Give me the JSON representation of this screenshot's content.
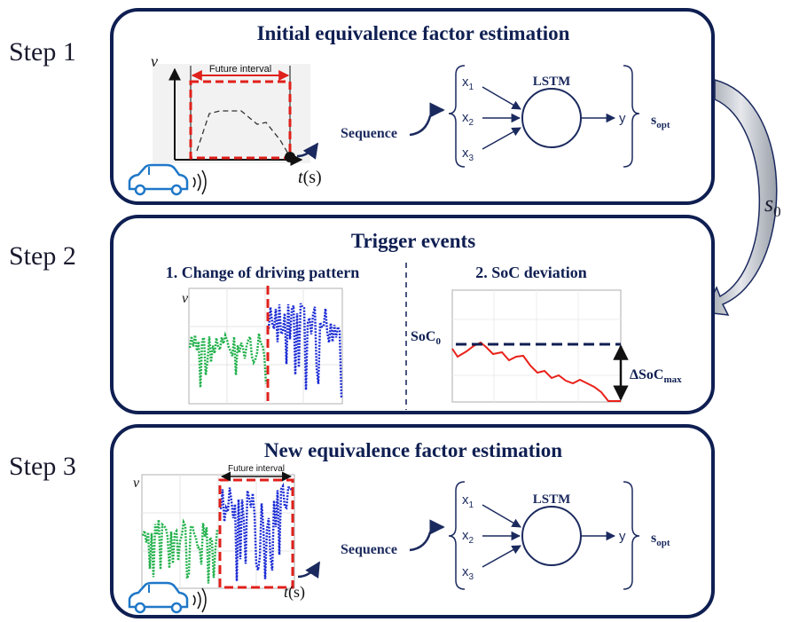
{
  "steps": [
    {
      "label": "Step 1",
      "title": "Initial equivalence factor estimation",
      "plot": {
        "ylabel": "v",
        "xlabel_t": "t",
        "xlabel_unit": "(s)",
        "future_interval": "Future interval"
      },
      "sequence_label": "Sequence",
      "lstm": {
        "label": "LSTM",
        "inputs": [
          "x",
          "x",
          "x"
        ],
        "input_subs": [
          "1",
          "2",
          "3"
        ],
        "output": "y"
      },
      "s_opt": {
        "main": "s",
        "sub": "opt"
      }
    },
    {
      "label": "Step 2",
      "title": "Trigger events",
      "left_heading": "1. Change of driving pattern",
      "left_ylabel": "v",
      "right_heading": "2. SoC deviation",
      "soc0": {
        "main": "SoC",
        "sub": "0"
      },
      "delta": {
        "main": "ΔSoC",
        "sub": "max"
      }
    },
    {
      "label": "Step 3",
      "title": "New equivalence factor estimation",
      "plot": {
        "ylabel": "v",
        "xlabel_t": "t",
        "xlabel_unit": "(s)",
        "future_interval": "Future interval"
      },
      "sequence_label": "Sequence",
      "lstm": {
        "label": "LSTM",
        "inputs": [
          "x",
          "x",
          "x"
        ],
        "input_subs": [
          "1",
          "2",
          "3"
        ],
        "output": "y"
      },
      "s_opt": {
        "main": "s",
        "sub": "opt"
      }
    }
  ],
  "feedback": {
    "main": "s",
    "sub": "0"
  },
  "colors": {
    "box_border": "#0f1f52",
    "arrow_navy": "#1b2a5e",
    "dashed_red": "#e0201b",
    "green": "#22b14c",
    "blue": "#1b2bd4",
    "soc_line": "#e8211a",
    "gray_arrow": "#b8bcc4"
  }
}
